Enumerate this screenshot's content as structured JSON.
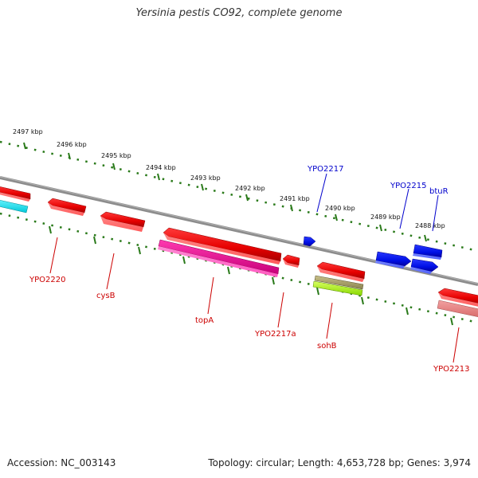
{
  "title": "Yersinia pestis CO92, complete genome",
  "footer": {
    "accession": "Accession: NC_003143",
    "summary": "Topology: circular; Length: 4,653,728 bp; Genes: 3,974"
  },
  "colors": {
    "backbone": "#8c8c8c",
    "tick": "#2a7a1a",
    "forward_label": "#0000cc",
    "reverse_label": "#cc0000"
  },
  "kbp_labels": [
    "2497 kbp",
    "2496 kbp",
    "2495 kbp",
    "2494 kbp",
    "2493 kbp",
    "2492 kbp",
    "2491 kbp",
    "2490 kbp",
    "2489 kbp",
    "2488 kbp"
  ],
  "gene_labels": {
    "forward": [
      "YPO2217",
      "YPO2215",
      "btuR"
    ],
    "reverse": [
      "YPO2220",
      "cysB",
      "topA",
      "YPO2217a",
      "sohB",
      "YPO2213"
    ]
  }
}
